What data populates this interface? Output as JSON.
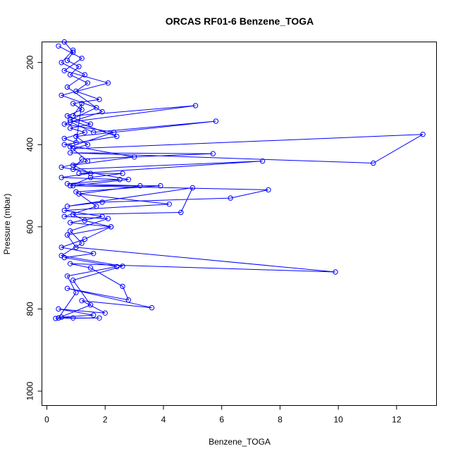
{
  "chart_data": {
    "type": "scatter",
    "title": "ORCAS RF01-6 Benzene_TOGA",
    "xlabel": "Benzene_TOGA",
    "ylabel": "Pressure (mbar)",
    "xlim": [
      0,
      13.2
    ],
    "ylim": [
      1035,
      150
    ],
    "y_reversed": true,
    "x_ticks": [
      0,
      2,
      4,
      6,
      8,
      10,
      12
    ],
    "y_ticks": [
      200,
      400,
      600,
      800,
      1000
    ],
    "grid": false,
    "legend": "none",
    "marker": "open-circle",
    "connected": true,
    "color": "#0000ff",
    "series": [
      {
        "x": [
          0.6,
          0.9,
          0.7,
          1.1,
          0.8,
          1.4,
          1.0,
          1.8,
          0.9,
          1.2,
          0.7,
          1.5,
          0.8,
          1.3,
          0.6,
          1.0,
          1.2,
          0.9,
          5.1,
          0.8,
          1.6,
          5.8,
          1.0,
          1.4,
          0.9,
          12.9,
          11.2,
          0.8,
          5.7,
          1.2,
          0.9,
          7.4,
          1.1,
          2.6,
          1.5,
          0.8,
          7.6,
          6.3,
          1.9,
          0.7,
          5.0,
          4.6,
          0.9,
          1.3,
          2.2,
          0.7,
          1.0,
          9.9,
          0.8,
          1.5,
          2.6,
          2.8,
          0.7,
          3.6,
          1.2,
          2.0,
          0.4,
          1.6,
          0.5,
          0.9,
          1.8,
          0.3
        ],
        "y": [
          150,
          175,
          195,
          210,
          230,
          250,
          270,
          290,
          300,
          315,
          330,
          350,
          360,
          370,
          385,
          395,
          300,
          330,
          305,
          345,
          370,
          343,
          380,
          400,
          410,
          375,
          445,
          420,
          422,
          435,
          460,
          440,
          470,
          470,
          480,
          500,
          510,
          530,
          540,
          550,
          505,
          565,
          570,
          585,
          600,
          620,
          650,
          710,
          690,
          700,
          745,
          778,
          750,
          797,
          780,
          810,
          800,
          815,
          820,
          822,
          822,
          823
        ]
      },
      {
        "x": [
          0.4,
          1.2,
          0.6,
          2.1,
          0.5,
          1.7,
          0.8,
          2.4,
          0.6,
          3.0,
          0.9,
          1.5,
          0.5,
          2.5,
          0.7,
          3.2,
          1.1,
          4.2,
          0.6,
          1.9,
          0.8,
          2.2,
          1.3,
          0.5,
          1.6,
          0.6,
          2.4,
          0.7,
          1.0,
          0.4
        ],
        "y": [
          160,
          190,
          220,
          250,
          280,
          310,
          340,
          380,
          400,
          430,
          450,
          470,
          480,
          485,
          495,
          500,
          520,
          545,
          560,
          575,
          590,
          600,
          630,
          650,
          665,
          675,
          697,
          720,
          760,
          822
        ]
      },
      {
        "x": [
          0.9,
          0.5,
          1.3,
          0.7,
          1.9,
          0.6,
          2.3,
          0.8,
          1.4,
          0.5,
          2.8,
          0.9,
          3.9,
          1.0,
          1.7,
          0.6,
          2.1,
          0.8,
          1.2,
          0.5,
          2.6,
          0.9,
          1.5,
          0.4
        ],
        "y": [
          170,
          200,
          230,
          260,
          320,
          350,
          370,
          405,
          440,
          455,
          485,
          500,
          500,
          515,
          550,
          575,
          580,
          610,
          640,
          670,
          696,
          730,
          790,
          822
        ]
      }
    ]
  }
}
